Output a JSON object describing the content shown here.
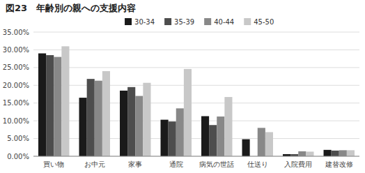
{
  "chart_data": {
    "type": "bar",
    "title": "図23　年齢別の親への支援内容",
    "categories": [
      "買い物",
      "お中元",
      "家事",
      "通院",
      "病気の世話",
      "仕送り",
      "入院費用",
      "建替改修"
    ],
    "series": [
      {
        "name": "30-34",
        "color": "#1a1a1a",
        "values": [
          29.0,
          16.5,
          18.5,
          10.3,
          11.3,
          4.8,
          0.6,
          1.8
        ]
      },
      {
        "name": "35-39",
        "color": "#4d4d4d",
        "values": [
          28.5,
          21.8,
          19.5,
          9.8,
          8.8,
          0.0,
          0.6,
          1.6
        ]
      },
      {
        "name": "40-44",
        "color": "#888888",
        "values": [
          28.0,
          21.3,
          17.0,
          13.5,
          11.2,
          8.0,
          1.4,
          1.7
        ]
      },
      {
        "name": "45-50",
        "color": "#c8c8c8",
        "values": [
          31.0,
          24.0,
          20.7,
          24.6,
          16.7,
          6.8,
          1.3,
          1.7
        ]
      }
    ],
    "ylim": [
      0,
      35
    ],
    "yticks": [
      {
        "value": 0,
        "label": "0.00%"
      },
      {
        "value": 5,
        "label": "5.00%"
      },
      {
        "value": 10,
        "label": "10.00%"
      },
      {
        "value": 15,
        "label": "15.00%"
      },
      {
        "value": 20,
        "label": "20.00%"
      },
      {
        "value": 25,
        "label": "25.00%"
      },
      {
        "value": 30,
        "label": "30.00%"
      },
      {
        "value": 35,
        "label": "35.00%"
      }
    ],
    "grid": true,
    "legend": "top"
  }
}
